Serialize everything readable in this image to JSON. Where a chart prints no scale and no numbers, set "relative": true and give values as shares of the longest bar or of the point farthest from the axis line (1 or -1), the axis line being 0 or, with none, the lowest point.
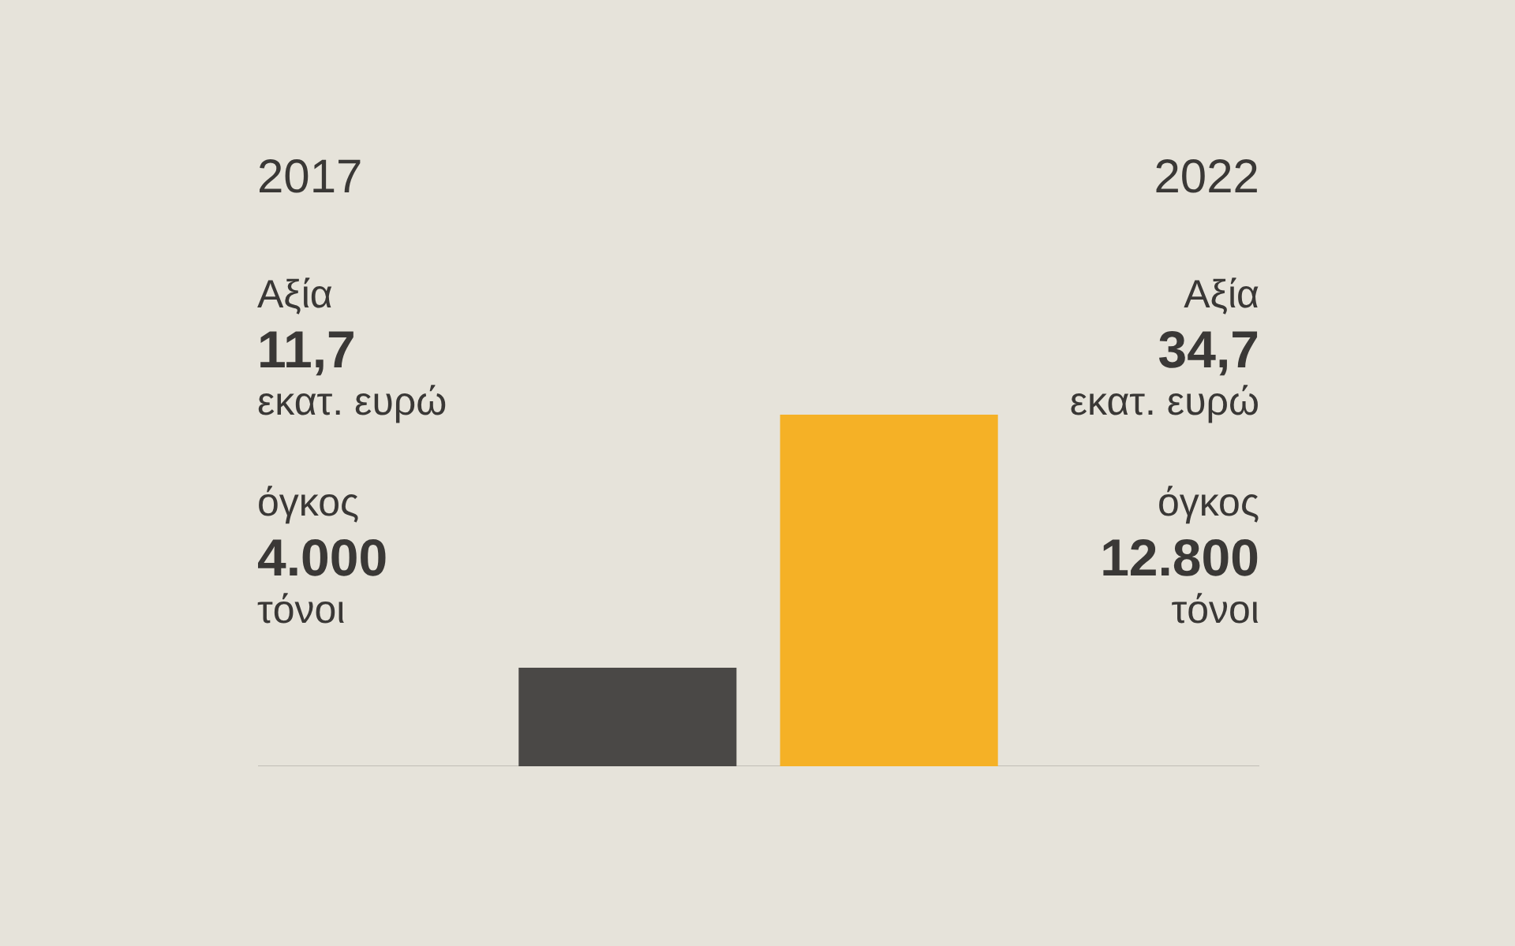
{
  "chart_data": {
    "type": "bar",
    "relative": true,
    "categories": [
      "2017",
      "2022"
    ],
    "colors": [
      "#4a4846",
      "#f5b126"
    ],
    "values": [
      0.28,
      1
    ],
    "annotations": [
      "Αξία",
      "11,7",
      "εκατ. ευρώ",
      "όγκος",
      "4.000",
      "τόνοι",
      "Αξία",
      "34,7",
      "εκατ. ευρώ",
      "όγκος",
      "12.800",
      "τόνοι"
    ]
  }
}
